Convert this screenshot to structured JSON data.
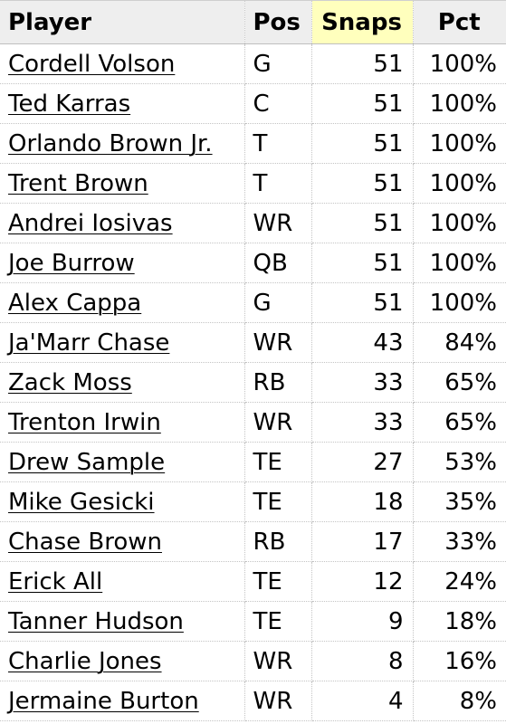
{
  "table": {
    "headers": {
      "player": "Player",
      "pos": "Pos",
      "snaps": "Snaps",
      "pct": "Pct"
    },
    "sorted_column": "Snaps",
    "sorted_highlight_color": "#ffffbd",
    "rows": [
      {
        "player": "Cordell Volson",
        "pos": "G",
        "snaps": "51",
        "pct": "100%"
      },
      {
        "player": "Ted Karras",
        "pos": "C",
        "snaps": "51",
        "pct": "100%"
      },
      {
        "player": "Orlando Brown Jr.",
        "pos": "T",
        "snaps": "51",
        "pct": "100%"
      },
      {
        "player": "Trent Brown",
        "pos": "T",
        "snaps": "51",
        "pct": "100%"
      },
      {
        "player": "Andrei Iosivas",
        "pos": "WR",
        "snaps": "51",
        "pct": "100%"
      },
      {
        "player": "Joe Burrow",
        "pos": "QB",
        "snaps": "51",
        "pct": "100%"
      },
      {
        "player": "Alex Cappa",
        "pos": "G",
        "snaps": "51",
        "pct": "100%"
      },
      {
        "player": "Ja'Marr Chase",
        "pos": "WR",
        "snaps": "43",
        "pct": "84%"
      },
      {
        "player": "Zack Moss",
        "pos": "RB",
        "snaps": "33",
        "pct": "65%"
      },
      {
        "player": "Trenton Irwin",
        "pos": "WR",
        "snaps": "33",
        "pct": "65%"
      },
      {
        "player": "Drew Sample",
        "pos": "TE",
        "snaps": "27",
        "pct": "53%"
      },
      {
        "player": "Mike Gesicki",
        "pos": "TE",
        "snaps": "18",
        "pct": "35%"
      },
      {
        "player": "Chase Brown",
        "pos": "RB",
        "snaps": "17",
        "pct": "33%"
      },
      {
        "player": "Erick All",
        "pos": "TE",
        "snaps": "12",
        "pct": "24%"
      },
      {
        "player": "Tanner Hudson",
        "pos": "TE",
        "snaps": "9",
        "pct": "18%"
      },
      {
        "player": "Charlie Jones",
        "pos": "WR",
        "snaps": "8",
        "pct": "16%"
      },
      {
        "player": "Jermaine Burton",
        "pos": "WR",
        "snaps": "4",
        "pct": "8%"
      }
    ]
  }
}
